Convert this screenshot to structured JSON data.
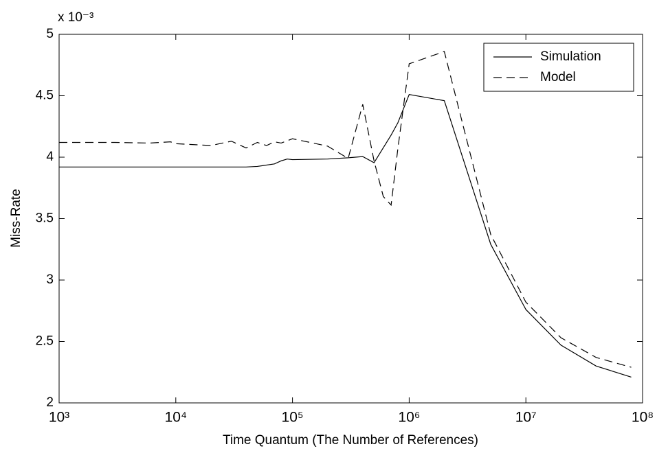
{
  "chart_data": {
    "type": "line",
    "xlabel": "Time Quantum (The Number of References)",
    "ylabel": "Miss-Rate",
    "y_multiplier": "x 10⁻³",
    "xscale": "log",
    "xlim": [
      1000,
      100000000
    ],
    "ylim": [
      2,
      5
    ],
    "xticks": [
      {
        "value": 1000,
        "label": "10³"
      },
      {
        "value": 10000,
        "label": "10⁴"
      },
      {
        "value": 100000,
        "label": "10⁵"
      },
      {
        "value": 1000000,
        "label": "10⁶"
      },
      {
        "value": 10000000,
        "label": "10⁷"
      },
      {
        "value": 100000000,
        "label": "10⁸"
      }
    ],
    "yticks": [
      2,
      2.5,
      3,
      3.5,
      4,
      4.5,
      5
    ],
    "legend": "top-right",
    "series": [
      {
        "name": "Simulation",
        "color": "#000000",
        "dash": "solid",
        "x": [
          1000,
          10000,
          20000,
          40000,
          50000,
          70000,
          80000,
          90000,
          100000,
          200000,
          300000,
          400000,
          500000,
          700000,
          800000,
          1000000,
          2000000,
          5000000,
          10000000,
          20000000,
          40000000,
          80000000
        ],
        "values": [
          3.92,
          3.92,
          3.92,
          3.92,
          3.925,
          3.945,
          3.97,
          3.985,
          3.98,
          3.985,
          3.995,
          4.005,
          3.955,
          4.18,
          4.28,
          4.51,
          4.46,
          3.29,
          2.76,
          2.47,
          2.3,
          2.21
        ]
      },
      {
        "name": "Model",
        "color": "#000000",
        "dash": "dashed",
        "x": [
          1000,
          3000,
          6000,
          9000,
          10000,
          20000,
          30000,
          40000,
          50000,
          60000,
          70000,
          80000,
          100000,
          200000,
          300000,
          400000,
          500000,
          600000,
          700000,
          800000,
          1000000,
          2000000,
          5000000,
          10000000,
          20000000,
          40000000,
          80000000
        ],
        "values": [
          4.12,
          4.12,
          4.115,
          4.125,
          4.11,
          4.095,
          4.13,
          4.075,
          4.12,
          4.095,
          4.125,
          4.115,
          4.15,
          4.09,
          3.99,
          4.43,
          3.97,
          3.68,
          3.61,
          4.07,
          4.76,
          4.86,
          3.37,
          2.82,
          2.53,
          2.37,
          2.29
        ]
      }
    ]
  }
}
